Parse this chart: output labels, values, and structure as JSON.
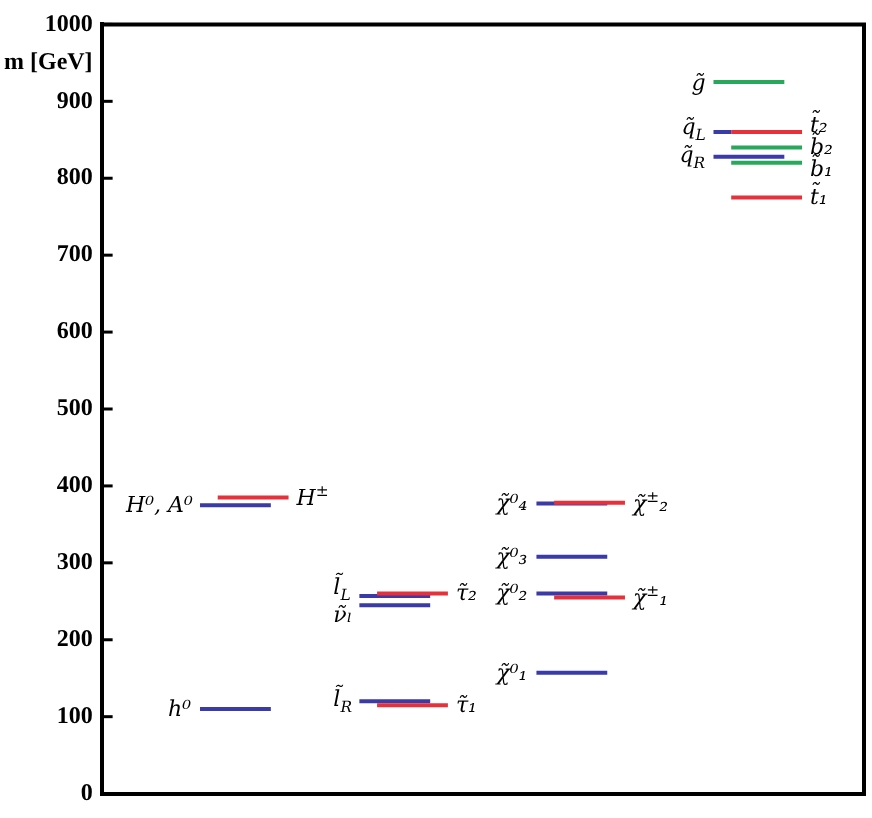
{
  "chart_data": {
    "type": "line",
    "ylabel": "m [GeV]",
    "tick_labels": "y",
    "marker": "none",
    "line_style": "solid",
    "categories": [
      null,
      null,
      null,
      null,
      null,
      null,
      null,
      null,
      null,
      null,
      null,
      null,
      null,
      null,
      null,
      null,
      null,
      null,
      null,
      null,
      null,
      null,
      null,
      null,
      null,
      null,
      null,
      null,
      null,
      null,
      null,
      null,
      null,
      null,
      null,
      null,
      null,
      null,
      null,
      null,
      null,
      null,
      null
    ],
    "ylim": [
      0,
      1000
    ],
    "yticks": [
      0,
      100,
      200,
      300,
      400,
      500,
      600,
      700,
      800,
      900,
      1000
    ],
    "series": [
      {
        "name": "h⁰",
        "color": "#3a3aa8",
        "values": [
          null,
          null,
          null,
          null,
          null,
          110,
          110,
          110,
          110,
          110,
          null,
          null,
          null,
          null,
          null,
          null,
          null,
          null,
          null,
          null,
          null,
          null,
          null,
          null,
          null,
          null,
          null,
          null,
          null,
          null,
          null,
          null,
          null,
          null,
          null,
          null,
          null,
          null,
          null,
          null,
          null,
          null,
          null
        ]
      },
      {
        "name": "H⁰, A⁰",
        "color": "#3a3aa8",
        "values": [
          null,
          null,
          null,
          null,
          null,
          375,
          375,
          375,
          375,
          375,
          null,
          null,
          null,
          null,
          null,
          null,
          null,
          null,
          null,
          null,
          null,
          null,
          null,
          null,
          null,
          null,
          null,
          null,
          null,
          null,
          null,
          null,
          null,
          null,
          null,
          null,
          null,
          null,
          null,
          null,
          null,
          null,
          null
        ]
      },
      {
        "name": "H$^{±}$",
        "color": "#e8303a",
        "values": [
          null,
          null,
          null,
          null,
          null,
          null,
          385,
          385,
          385,
          385,
          385,
          null,
          null,
          null,
          null,
          null,
          null,
          null,
          null,
          null,
          null,
          null,
          null,
          null,
          null,
          null,
          null,
          null,
          null,
          null,
          null,
          null,
          null,
          null,
          null,
          null,
          null,
          null,
          null,
          null,
          null,
          null,
          null
        ]
      },
      {
        "name": "l̃$_{R}$",
        "color": "#3a3aa8",
        "values": [
          null,
          null,
          null,
          null,
          null,
          null,
          null,
          null,
          null,
          null,
          null,
          null,
          null,
          null,
          120,
          120,
          120,
          120,
          120,
          null,
          null,
          null,
          null,
          null,
          null,
          null,
          null,
          null,
          null,
          null,
          null,
          null,
          null,
          null,
          null,
          null,
          null,
          null,
          null,
          null,
          null,
          null,
          null
        ]
      },
      {
        "name": "τ̃₁",
        "color": "#e8303a",
        "values": [
          null,
          null,
          null,
          null,
          null,
          null,
          null,
          null,
          null,
          null,
          null,
          null,
          null,
          null,
          null,
          115,
          115,
          115,
          115,
          115,
          null,
          null,
          null,
          null,
          null,
          null,
          null,
          null,
          null,
          null,
          null,
          null,
          null,
          null,
          null,
          null,
          null,
          null,
          null,
          null,
          null,
          null,
          null
        ]
      },
      {
        "name": "ν̃ₗ",
        "color": "#3a3aa8",
        "values": [
          null,
          null,
          null,
          null,
          null,
          null,
          null,
          null,
          null,
          null,
          null,
          null,
          null,
          null,
          245,
          245,
          245,
          245,
          245,
          null,
          null,
          null,
          null,
          null,
          null,
          null,
          null,
          null,
          null,
          null,
          null,
          null,
          null,
          null,
          null,
          null,
          null,
          null,
          null,
          null,
          null,
          null,
          null
        ]
      },
      {
        "name": "l̃$_{L}$",
        "color": "#3a3aa8",
        "values": [
          null,
          null,
          null,
          null,
          null,
          null,
          null,
          null,
          null,
          null,
          null,
          null,
          null,
          null,
          257,
          257,
          257,
          257,
          257,
          null,
          null,
          null,
          null,
          null,
          null,
          null,
          null,
          null,
          null,
          null,
          null,
          null,
          null,
          null,
          null,
          null,
          null,
          null,
          null,
          null,
          null,
          null,
          null
        ]
      },
      {
        "name": "τ̃₂",
        "color": "#e8303a",
        "values": [
          null,
          null,
          null,
          null,
          null,
          null,
          null,
          null,
          null,
          null,
          null,
          null,
          null,
          null,
          null,
          260,
          260,
          260,
          260,
          260,
          null,
          null,
          null,
          null,
          null,
          null,
          null,
          null,
          null,
          null,
          null,
          null,
          null,
          null,
          null,
          null,
          null,
          null,
          null,
          null,
          null,
          null,
          null
        ]
      },
      {
        "name": "χ̃⁰₁",
        "color": "#3a3aa8",
        "values": [
          null,
          null,
          null,
          null,
          null,
          null,
          null,
          null,
          null,
          null,
          null,
          null,
          null,
          null,
          null,
          null,
          null,
          null,
          null,
          null,
          null,
          null,
          null,
          null,
          157,
          157,
          157,
          157,
          157,
          null,
          null,
          null,
          null,
          null,
          null,
          null,
          null,
          null,
          null,
          null,
          null,
          null,
          null
        ]
      },
      {
        "name": "χ̃⁰₂",
        "color": "#3a3aa8",
        "values": [
          null,
          null,
          null,
          null,
          null,
          null,
          null,
          null,
          null,
          null,
          null,
          null,
          null,
          null,
          null,
          null,
          null,
          null,
          null,
          null,
          null,
          null,
          null,
          null,
          260,
          260,
          260,
          260,
          260,
          null,
          null,
          null,
          null,
          null,
          null,
          null,
          null,
          null,
          null,
          null,
          null,
          null,
          null
        ]
      },
      {
        "name": "χ̃$^{±}$₁",
        "color": "#e8303a",
        "values": [
          null,
          null,
          null,
          null,
          null,
          null,
          null,
          null,
          null,
          null,
          null,
          null,
          null,
          null,
          null,
          null,
          null,
          null,
          null,
          null,
          null,
          null,
          null,
          null,
          null,
          255,
          255,
          255,
          255,
          255,
          null,
          null,
          null,
          null,
          null,
          null,
          null,
          null,
          null,
          null,
          null,
          null,
          null
        ]
      },
      {
        "name": "χ̃⁰₃",
        "color": "#3a3aa8",
        "values": [
          null,
          null,
          null,
          null,
          null,
          null,
          null,
          null,
          null,
          null,
          null,
          null,
          null,
          null,
          null,
          null,
          null,
          null,
          null,
          null,
          null,
          null,
          null,
          null,
          308,
          308,
          308,
          308,
          308,
          null,
          null,
          null,
          null,
          null,
          null,
          null,
          null,
          null,
          null,
          null,
          null,
          null,
          null
        ]
      },
      {
        "name": "χ̃⁰₄",
        "color": "#3a3aa8",
        "values": [
          null,
          null,
          null,
          null,
          null,
          null,
          null,
          null,
          null,
          null,
          null,
          null,
          null,
          null,
          null,
          null,
          null,
          null,
          null,
          null,
          null,
          null,
          null,
          null,
          377,
          377,
          377,
          377,
          377,
          null,
          null,
          null,
          null,
          null,
          null,
          null,
          null,
          null,
          null,
          null,
          null,
          null,
          null
        ]
      },
      {
        "name": "χ̃$^{±}$₂",
        "color": "#e8303a",
        "values": [
          null,
          null,
          null,
          null,
          null,
          null,
          null,
          null,
          null,
          null,
          null,
          null,
          null,
          null,
          null,
          null,
          null,
          null,
          null,
          null,
          null,
          null,
          null,
          null,
          null,
          378,
          378,
          378,
          378,
          378,
          null,
          null,
          null,
          null,
          null,
          null,
          null,
          null,
          null,
          null,
          null,
          null,
          null
        ]
      },
      {
        "name": "t̃₁",
        "color": "#e8303a",
        "values": [
          null,
          null,
          null,
          null,
          null,
          null,
          null,
          null,
          null,
          null,
          null,
          null,
          null,
          null,
          null,
          null,
          null,
          null,
          null,
          null,
          null,
          null,
          null,
          null,
          null,
          null,
          null,
          null,
          null,
          null,
          null,
          null,
          null,
          null,
          null,
          775,
          775,
          775,
          775,
          775,
          null,
          null,
          null
        ]
      },
      {
        "name": "b̃₁",
        "color": "#28a85a",
        "values": [
          null,
          null,
          null,
          null,
          null,
          null,
          null,
          null,
          null,
          null,
          null,
          null,
          null,
          null,
          null,
          null,
          null,
          null,
          null,
          null,
          null,
          null,
          null,
          null,
          null,
          null,
          null,
          null,
          null,
          null,
          null,
          null,
          null,
          null,
          null,
          820,
          820,
          820,
          820,
          820,
          null,
          null,
          null
        ]
      },
      {
        "name": "q̃$_{R}$",
        "color": "#3a3aa8",
        "values": [
          null,
          null,
          null,
          null,
          null,
          null,
          null,
          null,
          null,
          null,
          null,
          null,
          null,
          null,
          null,
          null,
          null,
          null,
          null,
          null,
          null,
          null,
          null,
          null,
          null,
          null,
          null,
          null,
          null,
          null,
          null,
          null,
          null,
          null,
          828,
          828,
          828,
          828,
          828,
          null,
          null,
          null,
          null
        ]
      },
      {
        "name": "b̃₂",
        "color": "#28a85a",
        "values": [
          null,
          null,
          null,
          null,
          null,
          null,
          null,
          null,
          null,
          null,
          null,
          null,
          null,
          null,
          null,
          null,
          null,
          null,
          null,
          null,
          null,
          null,
          null,
          null,
          null,
          null,
          null,
          null,
          null,
          null,
          null,
          null,
          null,
          null,
          null,
          840,
          840,
          840,
          840,
          840,
          null,
          null,
          null
        ]
      },
      {
        "name": "q̃$_{L}$",
        "color": "#3a3aa8",
        "values": [
          null,
          null,
          null,
          null,
          null,
          null,
          null,
          null,
          null,
          null,
          null,
          null,
          null,
          null,
          null,
          null,
          null,
          null,
          null,
          null,
          null,
          null,
          null,
          null,
          null,
          null,
          null,
          null,
          null,
          null,
          null,
          null,
          null,
          null,
          860,
          860,
          null,
          null,
          null,
          null,
          null,
          null,
          null
        ]
      },
      {
        "name": "t̃₂",
        "color": "#e8303a",
        "values": [
          null,
          null,
          null,
          null,
          null,
          null,
          null,
          null,
          null,
          null,
          null,
          null,
          null,
          null,
          null,
          null,
          null,
          null,
          null,
          null,
          null,
          null,
          null,
          null,
          null,
          null,
          null,
          null,
          null,
          null,
          null,
          null,
          null,
          null,
          null,
          860,
          860,
          860,
          860,
          860,
          null,
          null,
          null
        ]
      },
      {
        "name": "g̃",
        "color": "#28a85a",
        "values": [
          null,
          null,
          null,
          null,
          null,
          null,
          null,
          null,
          null,
          null,
          null,
          null,
          null,
          null,
          null,
          null,
          null,
          null,
          null,
          null,
          null,
          null,
          null,
          null,
          null,
          null,
          null,
          null,
          null,
          null,
          null,
          null,
          null,
          null,
          925,
          925,
          925,
          925,
          925,
          null,
          null,
          null,
          null
        ]
      }
    ]
  }
}
